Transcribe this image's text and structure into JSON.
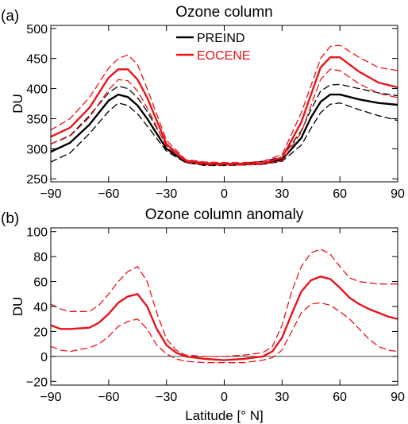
{
  "chart_data": [
    {
      "panel_label": "(a)",
      "type": "line",
      "title": "Ozone column",
      "xlabel": "",
      "ylabel": "DU",
      "xlim": [
        -90,
        90
      ],
      "ylim": [
        245,
        505
      ],
      "xticks": [
        -90,
        -60,
        -30,
        0,
        30,
        60,
        90
      ],
      "xticklabels": [
        "−90",
        "−60",
        "−30",
        "0",
        "30",
        "60",
        "90"
      ],
      "yticks": [
        250,
        300,
        350,
        400,
        450,
        500
      ],
      "yticklabels": [
        "250",
        "300",
        "350",
        "400",
        "450",
        "500"
      ],
      "grid": false,
      "legend": "top-center",
      "x": [
        -90,
        -80,
        -70,
        -60,
        -55,
        -50,
        -45,
        -40,
        -30,
        -20,
        -10,
        0,
        10,
        20,
        30,
        40,
        45,
        50,
        55,
        60,
        70,
        80,
        90
      ],
      "series": [
        {
          "name": "PREIND",
          "color": "#000000",
          "style": "solid",
          "values": [
            295,
            310,
            340,
            380,
            390,
            386,
            372,
            350,
            300,
            278,
            274,
            274,
            274,
            276,
            282,
            318,
            352,
            378,
            390,
            390,
            382,
            376,
            373
          ]
        },
        {
          "name": "",
          "color": "#000000",
          "style": "dashed",
          "values": [
            308,
            322,
            355,
            393,
            404,
            400,
            385,
            362,
            306,
            280,
            276,
            275,
            276,
            279,
            286,
            330,
            365,
            396,
            406,
            407,
            400,
            393,
            388
          ]
        },
        {
          "name": "",
          "color": "#000000",
          "style": "dashed",
          "values": [
            278,
            293,
            325,
            362,
            376,
            372,
            358,
            338,
            296,
            277,
            272,
            272,
            273,
            274,
            279,
            306,
            334,
            360,
            374,
            376,
            365,
            355,
            347
          ]
        },
        {
          "name": "EOCENE",
          "color": "#e8141b",
          "style": "solid",
          "values": [
            320,
            335,
            368,
            418,
            432,
            432,
            415,
            385,
            308,
            280,
            276,
            275,
            275,
            276,
            285,
            344,
            390,
            435,
            452,
            452,
            428,
            410,
            402
          ]
        },
        {
          "name": "",
          "color": "#e8141b",
          "style": "dashed",
          "values": [
            331,
            350,
            385,
            434,
            450,
            456,
            440,
            400,
            314,
            282,
            278,
            277,
            277,
            279,
            290,
            360,
            405,
            450,
            470,
            472,
            452,
            435,
            430
          ]
        },
        {
          "name": "",
          "color": "#e8141b",
          "style": "dashed",
          "values": [
            308,
            321,
            352,
            398,
            415,
            413,
            396,
            368,
            304,
            278,
            273,
            273,
            273,
            274,
            280,
            327,
            372,
            415,
            432,
            430,
            408,
            392,
            385
          ]
        }
      ]
    },
    {
      "panel_label": "(b)",
      "type": "line",
      "title": "Ozone column anomaly",
      "xlabel": "Latitude [° N]",
      "ylabel": "DU",
      "xlim": [
        -90,
        90
      ],
      "ylim": [
        -23,
        103
      ],
      "xticks": [
        -90,
        -60,
        -30,
        0,
        30,
        60,
        90
      ],
      "xticklabels": [
        "−90",
        "−60",
        "−30",
        "0",
        "30",
        "60",
        "90"
      ],
      "yticks": [
        -20,
        0,
        20,
        40,
        60,
        80,
        100
      ],
      "yticklabels": [
        "−20",
        "0",
        "20",
        "40",
        "60",
        "80",
        "100"
      ],
      "grid": false,
      "zero_line": true,
      "x": [
        -90,
        -85,
        -80,
        -70,
        -65,
        -60,
        -55,
        -50,
        -45,
        -40,
        -35,
        -30,
        -25,
        -20,
        -10,
        0,
        10,
        20,
        25,
        30,
        35,
        40,
        45,
        50,
        55,
        60,
        65,
        70,
        75,
        80,
        85,
        90
      ],
      "series": [
        {
          "name": "",
          "color": "#e8141b",
          "style": "solid",
          "values": [
            25,
            22,
            22,
            23,
            27,
            34,
            43,
            48,
            50,
            40,
            22,
            9,
            3,
            0,
            -2,
            -3,
            -2,
            0,
            4,
            15,
            34,
            52,
            61,
            64,
            62,
            55,
            47,
            42,
            38,
            35,
            32,
            30
          ]
        },
        {
          "name": "",
          "color": "#e8141b",
          "style": "dashed",
          "values": [
            42,
            38,
            36,
            36,
            41,
            50,
            60,
            68,
            72,
            60,
            35,
            14,
            5,
            1,
            0,
            0,
            1,
            3,
            8,
            25,
            52,
            72,
            83,
            86,
            82,
            72,
            63,
            60,
            59,
            58,
            58,
            58
          ]
        },
        {
          "name": "",
          "color": "#e8141b",
          "style": "dashed",
          "values": [
            8,
            5,
            4,
            7,
            10,
            16,
            24,
            28,
            30,
            22,
            9,
            2,
            -2,
            -4,
            -5,
            -5,
            -5,
            -3,
            -1,
            5,
            20,
            35,
            42,
            43,
            41,
            36,
            30,
            22,
            14,
            8,
            5,
            4
          ]
        }
      ]
    }
  ]
}
